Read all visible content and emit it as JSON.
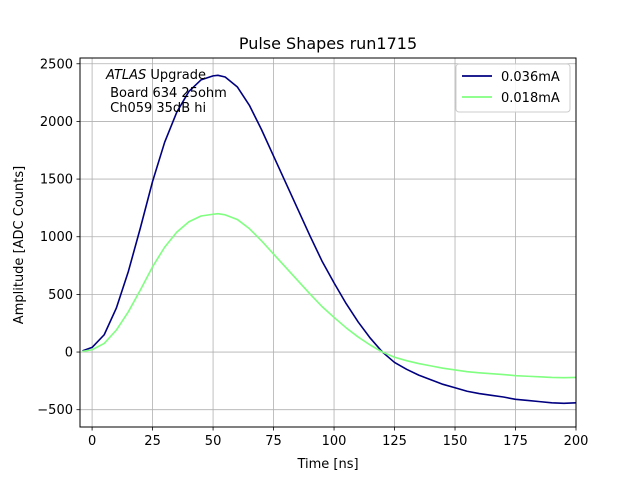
{
  "chart_data": {
    "type": "line",
    "title": "Pulse Shapes run1715",
    "xlabel": "Time [ns]",
    "ylabel": "Amplitude [ADC Counts]",
    "xlim": [
      -5,
      200
    ],
    "ylim": [
      -650,
      2550
    ],
    "xticks": [
      0,
      25,
      50,
      75,
      100,
      125,
      150,
      175,
      200
    ],
    "yticks": [
      -500,
      0,
      500,
      1000,
      1500,
      2000,
      2500
    ],
    "xtick_labels": [
      "0",
      "25",
      "50",
      "75",
      "100",
      "125",
      "150",
      "175",
      "200"
    ],
    "ytick_labels": [
      "−500",
      "0",
      "500",
      "1000",
      "1500",
      "2000",
      "2500"
    ],
    "grid": true,
    "legend_position": "top-right",
    "annotation": {
      "italic": "ATLAS",
      "line1_rest": " Upgrade",
      "line2": " Board 634 25ohm",
      "line3": " Ch059 35dB hi"
    },
    "series": [
      {
        "name": "0.036mA",
        "color": "#000080",
        "x": [
          -4,
          0,
          5,
          10,
          15,
          20,
          25,
          30,
          35,
          40,
          45,
          50,
          52,
          55,
          60,
          65,
          70,
          75,
          80,
          85,
          90,
          95,
          100,
          105,
          110,
          115,
          120,
          125,
          130,
          135,
          140,
          145,
          150,
          155,
          160,
          165,
          170,
          175,
          180,
          185,
          190,
          195,
          200
        ],
        "y": [
          10,
          40,
          150,
          380,
          700,
          1080,
          1480,
          1820,
          2080,
          2260,
          2360,
          2395,
          2400,
          2385,
          2300,
          2140,
          1930,
          1700,
          1470,
          1240,
          1010,
          790,
          600,
          420,
          260,
          120,
          0,
          -90,
          -150,
          -200,
          -240,
          -280,
          -310,
          -340,
          -360,
          -375,
          -390,
          -410,
          -420,
          -430,
          -440,
          -445,
          -440
        ]
      },
      {
        "name": "0.018mA",
        "color": "#80ff80",
        "x": [
          -4,
          0,
          5,
          10,
          15,
          20,
          25,
          30,
          35,
          40,
          45,
          50,
          52,
          55,
          60,
          65,
          70,
          75,
          80,
          85,
          90,
          95,
          100,
          105,
          110,
          115,
          120,
          125,
          130,
          135,
          140,
          145,
          150,
          155,
          160,
          165,
          170,
          175,
          180,
          185,
          190,
          195,
          200
        ],
        "y": [
          5,
          20,
          75,
          190,
          350,
          540,
          740,
          910,
          1040,
          1130,
          1180,
          1195,
          1200,
          1190,
          1150,
          1070,
          965,
          850,
          735,
          620,
          505,
          395,
          300,
          210,
          130,
          60,
          0,
          -45,
          -75,
          -100,
          -120,
          -140,
          -155,
          -170,
          -180,
          -188,
          -195,
          -205,
          -210,
          -215,
          -220,
          -222,
          -220
        ]
      }
    ]
  }
}
